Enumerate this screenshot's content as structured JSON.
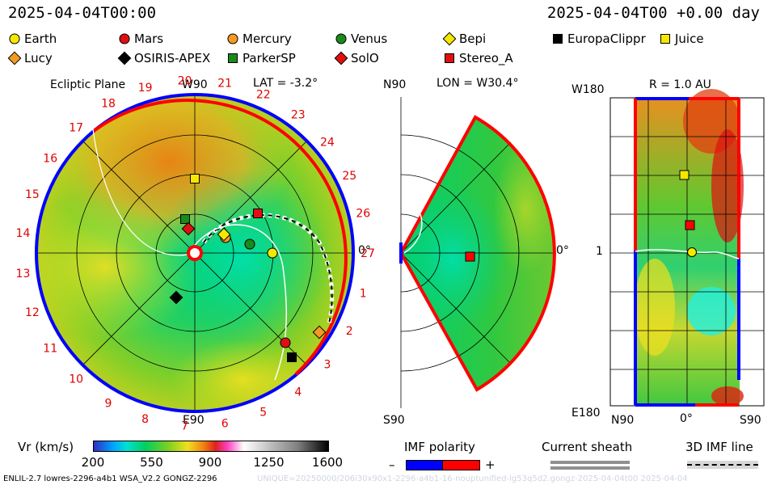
{
  "header": {
    "time_left": "2025-04-04T00:00",
    "time_right": "2025-04-04T00 +0.00 day"
  },
  "legend": [
    {
      "name": "Earth",
      "symbol": "circle",
      "color": "#f5e800"
    },
    {
      "name": "Mars",
      "symbol": "circle",
      "color": "#e01010"
    },
    {
      "name": "Mercury",
      "symbol": "circle",
      "color": "#f59a20"
    },
    {
      "name": "Venus",
      "symbol": "circle",
      "color": "#1a8a1a"
    },
    {
      "name": "Bepi",
      "symbol": "diamond",
      "color": "#f5e800"
    },
    {
      "name": "EuropaClippr",
      "symbol": "square",
      "color": "#000000"
    },
    {
      "name": "Juice",
      "symbol": "square",
      "color": "#f5e800"
    },
    {
      "name": "Lucy",
      "symbol": "diamond",
      "color": "#f59a20"
    },
    {
      "name": "OSIRIS-APEX",
      "symbol": "diamond",
      "color": "#000000"
    },
    {
      "name": "ParkerSP",
      "symbol": "square",
      "color": "#1a8a1a"
    },
    {
      "name": "SolO",
      "symbol": "diamond",
      "color": "#e01010"
    },
    {
      "name": "Stereo_A",
      "symbol": "square",
      "color": "#e01010"
    }
  ],
  "panels": {
    "ecliptic": {
      "title": "Ecliptic Plane",
      "lat_label": "LAT = -3.2°",
      "top_label": "W90",
      "bottom_label": "E90",
      "right_label": "0°",
      "carrington_labels": [
        "1",
        "2",
        "3",
        "4",
        "5",
        "6",
        "7",
        "8",
        "9",
        "10",
        "11",
        "12",
        "13",
        "14",
        "15",
        "16",
        "17",
        "18",
        "19",
        "20",
        "21",
        "22",
        "23",
        "24",
        "25",
        "26",
        "27"
      ]
    },
    "meridional": {
      "title": "LON = W30.4°",
      "top_label": "N90",
      "bottom_label": "S90",
      "right_label": "0°"
    },
    "radial": {
      "title": "R = 1.0 AU",
      "top_left": "W180",
      "mid_left": "1",
      "bottom_left": "E180",
      "x_labels": [
        "N90",
        "0°",
        "S90"
      ]
    }
  },
  "colorbar": {
    "label": "Vr (km/s)",
    "ticks": [
      "200",
      "550",
      "900",
      "1250",
      "1600"
    ],
    "range": [
      200,
      1600
    ]
  },
  "imf": {
    "title": "IMF polarity",
    "minus": "–",
    "plus": "+",
    "colors": [
      "#0000ff",
      "#ff0000"
    ]
  },
  "sheath": {
    "title": "Current sheath"
  },
  "imf3d": {
    "title": "3D IMF line"
  },
  "footer": {
    "left": "ENLIL-2.7 lowres-2296-a4b1 WSA_V2.2 GONGZ-2296",
    "right": "UNIQUE=20250000/206i30x90x1-2296-a4b1-16-nouptunified-lg53q5d2.gongz-2025-04-04t00   2025-04-04"
  }
}
